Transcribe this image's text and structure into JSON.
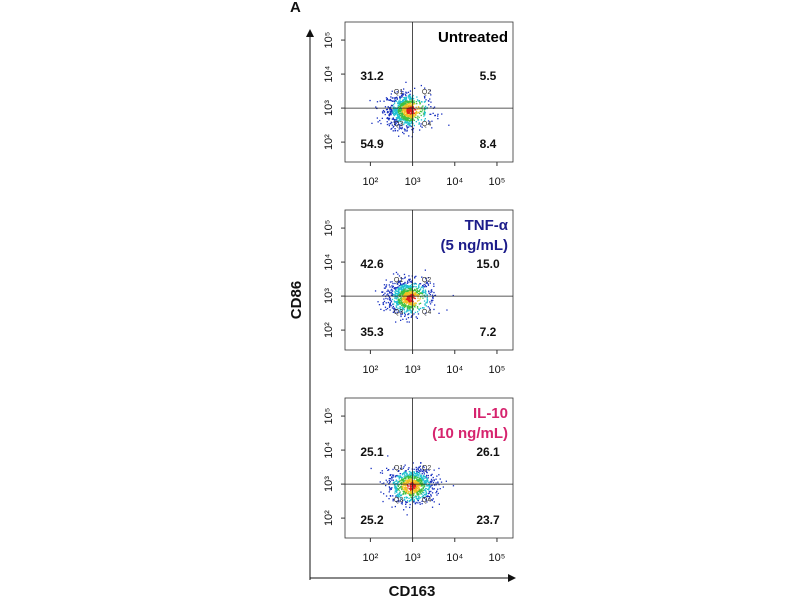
{
  "panel_label": "A",
  "x_label": "CD163",
  "y_label": "CD86",
  "chart_data": [
    {
      "type": "flow",
      "title": [
        "Untreated"
      ],
      "title_color": "#000000",
      "quadrant_names": [
        "Q1",
        "Q2",
        "Q3",
        "Q4"
      ],
      "values": [
        31.2,
        5.5,
        54.9,
        8.4
      ],
      "gate": [
        1000,
        1000
      ],
      "log": true,
      "xlim": [
        25,
        240000
      ],
      "ylim": [
        26,
        340000
      ],
      "xticks": [
        {
          "value": 100,
          "label": "10²"
        },
        {
          "value": 1000,
          "label": "10³"
        },
        {
          "value": 10000,
          "label": "10⁴"
        },
        {
          "value": 100000,
          "label": "10⁵"
        }
      ],
      "yticks": [
        {
          "value": 100,
          "label": "10²"
        },
        {
          "value": 1000,
          "label": "10³"
        },
        {
          "value": 10000,
          "label": "10⁴"
        },
        {
          "value": 100000,
          "label": "10⁵"
        }
      ]
    },
    {
      "type": "flow",
      "title": [
        "TNF-α",
        "(5 ng/mL)"
      ],
      "title_color": "#1c1c8a",
      "quadrant_names": [
        "Q1",
        "Q2",
        "Q3",
        "Q4"
      ],
      "values": [
        42.6,
        15.0,
        35.3,
        7.2
      ],
      "value_labels": [
        "42.6",
        "15.0",
        "35.3",
        "7.2"
      ],
      "gate": [
        1000,
        1000
      ],
      "log": true,
      "xlim": [
        25,
        240000
      ],
      "ylim": [
        26,
        340000
      ],
      "xticks": [
        {
          "value": 100,
          "label": "10²"
        },
        {
          "value": 1000,
          "label": "10³"
        },
        {
          "value": 10000,
          "label": "10⁴"
        },
        {
          "value": 100000,
          "label": "10⁵"
        }
      ],
      "yticks": [
        {
          "value": 100,
          "label": "10²"
        },
        {
          "value": 1000,
          "label": "10³"
        },
        {
          "value": 10000,
          "label": "10⁴"
        },
        {
          "value": 100000,
          "label": "10⁵"
        }
      ]
    },
    {
      "type": "flow",
      "title": [
        "IL-10",
        "(10 ng/mL)"
      ],
      "title_color": "#d6246e",
      "quadrant_names": [
        "Q1",
        "Q2",
        "Q3",
        "Q4"
      ],
      "values": [
        25.1,
        26.1,
        25.2,
        23.7
      ],
      "gate": [
        1000,
        1000
      ],
      "log": true,
      "xlim": [
        25,
        240000
      ],
      "ylim": [
        26,
        340000
      ],
      "xticks": [
        {
          "value": 100,
          "label": "10²"
        },
        {
          "value": 1000,
          "label": "10³"
        },
        {
          "value": 10000,
          "label": "10⁴"
        },
        {
          "value": 100000,
          "label": "10⁵"
        }
      ],
      "yticks": [
        {
          "value": 100,
          "label": "10²"
        },
        {
          "value": 1000,
          "label": "10³"
        },
        {
          "value": 10000,
          "label": "10⁴"
        },
        {
          "value": 100000,
          "label": "10⁵"
        }
      ]
    }
  ]
}
